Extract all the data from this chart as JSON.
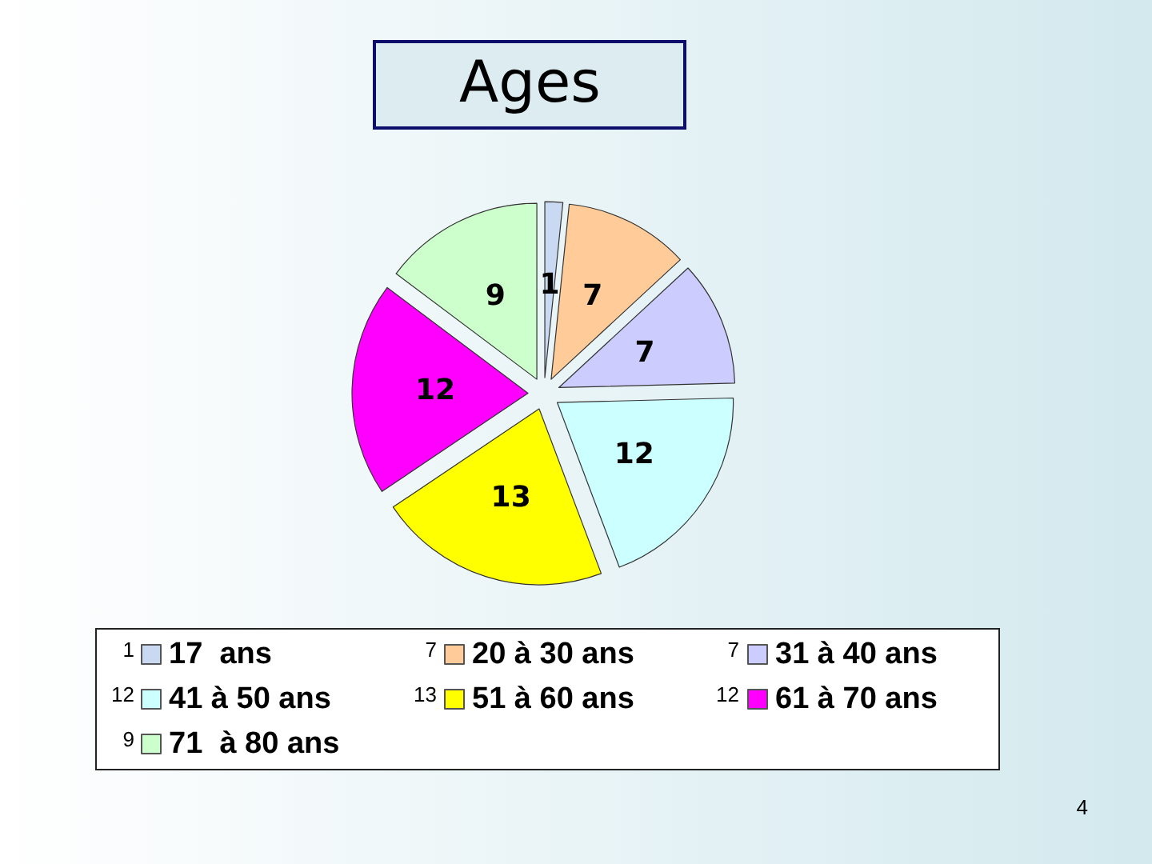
{
  "chart_data": {
    "type": "pie",
    "title": "Ages",
    "categories": [
      "17  ans",
      "20 à 30 ans",
      "31 à 40 ans",
      "41 à 50 ans",
      "51 à 60 ans",
      "61 à 70 ans",
      "71  à 80 ans"
    ],
    "values": [
      1,
      7,
      7,
      12,
      13,
      12,
      9
    ],
    "colors": [
      "#c9d9f2",
      "#ffcc99",
      "#ccccff",
      "#ccffff",
      "#ffff00",
      "#ff00ff",
      "#ccffcc"
    ],
    "data_labels": true,
    "legend": "bottom",
    "annotations": [
      "1",
      "7",
      "7",
      "12",
      "13",
      "12",
      "9",
      "4"
    ]
  }
}
